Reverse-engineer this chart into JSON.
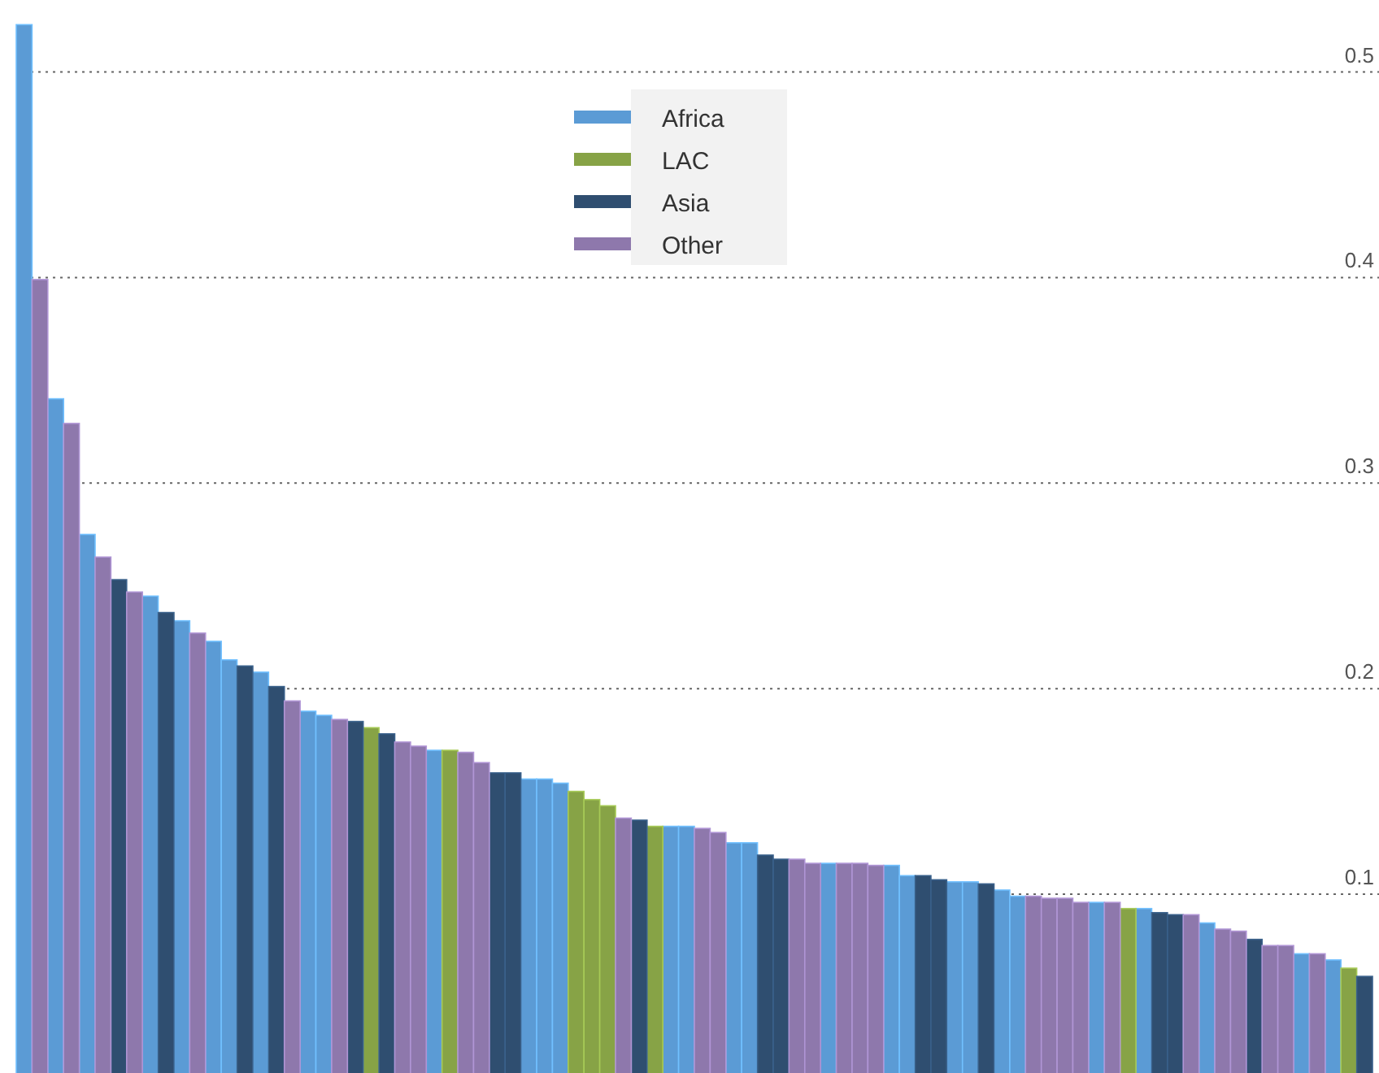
{
  "chart_data": {
    "type": "bar",
    "stacked": true,
    "categories": [
      null,
      null,
      null,
      null,
      null,
      null,
      null,
      null,
      null,
      null,
      null,
      null,
      null,
      null,
      null,
      null,
      null,
      null,
      null,
      null,
      null,
      null,
      null,
      null,
      null,
      null,
      null,
      null,
      null,
      null,
      null,
      null,
      null,
      null,
      null,
      null,
      null,
      null,
      null,
      null,
      null,
      null,
      null,
      null,
      null,
      null,
      null,
      null,
      null,
      null,
      null,
      null,
      null,
      null,
      null,
      null,
      null,
      null,
      null,
      null,
      null,
      null,
      null,
      null,
      null,
      null,
      null,
      null,
      null,
      null,
      null,
      null,
      null,
      null,
      null,
      null,
      null,
      null,
      null,
      null,
      null,
      null,
      null,
      null,
      null,
      null
    ],
    "series": [
      {
        "name": "Africa",
        "color": "#5b9bd5",
        "values": [
          0.523,
          null,
          0.341,
          null,
          0.275,
          null,
          null,
          null,
          0.245,
          null,
          0.233,
          null,
          0.223,
          0.214,
          null,
          0.208,
          null,
          null,
          0.189,
          0.187,
          null,
          null,
          null,
          null,
          null,
          null,
          0.17,
          null,
          null,
          null,
          null,
          null,
          0.156,
          0.156,
          0.154,
          null,
          null,
          null,
          null,
          null,
          null,
          0.133,
          0.133,
          null,
          null,
          0.125,
          0.125,
          null,
          null,
          null,
          null,
          0.115,
          null,
          null,
          null,
          0.114,
          0.109,
          null,
          null,
          0.106,
          0.106,
          null,
          0.102,
          0.099,
          null,
          null,
          null,
          null,
          0.096,
          null,
          null,
          0.093,
          null,
          null,
          null,
          0.086,
          null,
          null,
          null,
          null,
          null,
          0.071,
          null,
          0.068,
          null,
          null
        ]
      },
      {
        "name": "LAC",
        "color": "#87a346",
        "values": [
          null,
          null,
          null,
          null,
          null,
          null,
          null,
          null,
          null,
          null,
          null,
          null,
          null,
          null,
          null,
          null,
          null,
          null,
          null,
          null,
          null,
          null,
          0.181,
          null,
          null,
          null,
          null,
          0.17,
          null,
          null,
          null,
          null,
          null,
          null,
          null,
          0.15,
          0.146,
          0.143,
          null,
          null,
          0.133,
          null,
          null,
          null,
          null,
          null,
          null,
          null,
          null,
          null,
          null,
          null,
          null,
          null,
          null,
          null,
          null,
          null,
          null,
          null,
          null,
          null,
          null,
          null,
          null,
          null,
          null,
          null,
          null,
          null,
          0.093,
          null,
          null,
          null,
          null,
          null,
          null,
          null,
          null,
          null,
          null,
          null,
          null,
          null,
          0.064,
          null
        ]
      },
      {
        "name": "Asia",
        "color": "#2f4e70",
        "values": [
          null,
          null,
          null,
          null,
          null,
          null,
          0.253,
          null,
          null,
          0.237,
          null,
          null,
          null,
          null,
          0.211,
          null,
          0.201,
          null,
          null,
          null,
          null,
          0.184,
          null,
          0.178,
          null,
          null,
          null,
          null,
          null,
          null,
          0.159,
          0.159,
          null,
          null,
          null,
          null,
          null,
          null,
          null,
          0.136,
          null,
          null,
          null,
          null,
          null,
          null,
          null,
          0.119,
          0.117,
          null,
          null,
          null,
          null,
          null,
          null,
          null,
          null,
          0.109,
          0.107,
          null,
          null,
          0.105,
          null,
          null,
          null,
          null,
          null,
          null,
          null,
          null,
          null,
          null,
          0.091,
          0.09,
          null,
          null,
          null,
          null,
          0.078,
          null,
          null,
          null,
          null,
          null,
          null,
          0.06
        ]
      },
      {
        "name": "Other",
        "color": "#8e78ac",
        "values": [
          null,
          0.399,
          null,
          0.329,
          null,
          0.264,
          null,
          0.247,
          null,
          null,
          null,
          0.227,
          null,
          null,
          null,
          null,
          null,
          0.194,
          null,
          null,
          0.185,
          null,
          null,
          null,
          0.174,
          0.172,
          null,
          null,
          0.169,
          0.164,
          null,
          null,
          null,
          null,
          null,
          null,
          null,
          null,
          0.137,
          null,
          null,
          null,
          null,
          0.132,
          0.13,
          null,
          null,
          null,
          null,
          0.117,
          0.115,
          null,
          0.115,
          0.115,
          0.114,
          null,
          null,
          null,
          null,
          null,
          null,
          null,
          null,
          null,
          0.099,
          0.098,
          0.098,
          0.096,
          null,
          0.096,
          null,
          null,
          null,
          null,
          0.09,
          null,
          0.083,
          0.082,
          null,
          0.075,
          0.075,
          null,
          0.071,
          null,
          null,
          null
        ]
      }
    ],
    "ylim": [
      0.013,
      0.535
    ],
    "yticks": [
      0.1,
      0.2,
      0.3,
      0.4,
      0.5
    ],
    "grid": true,
    "legend": "top"
  }
}
